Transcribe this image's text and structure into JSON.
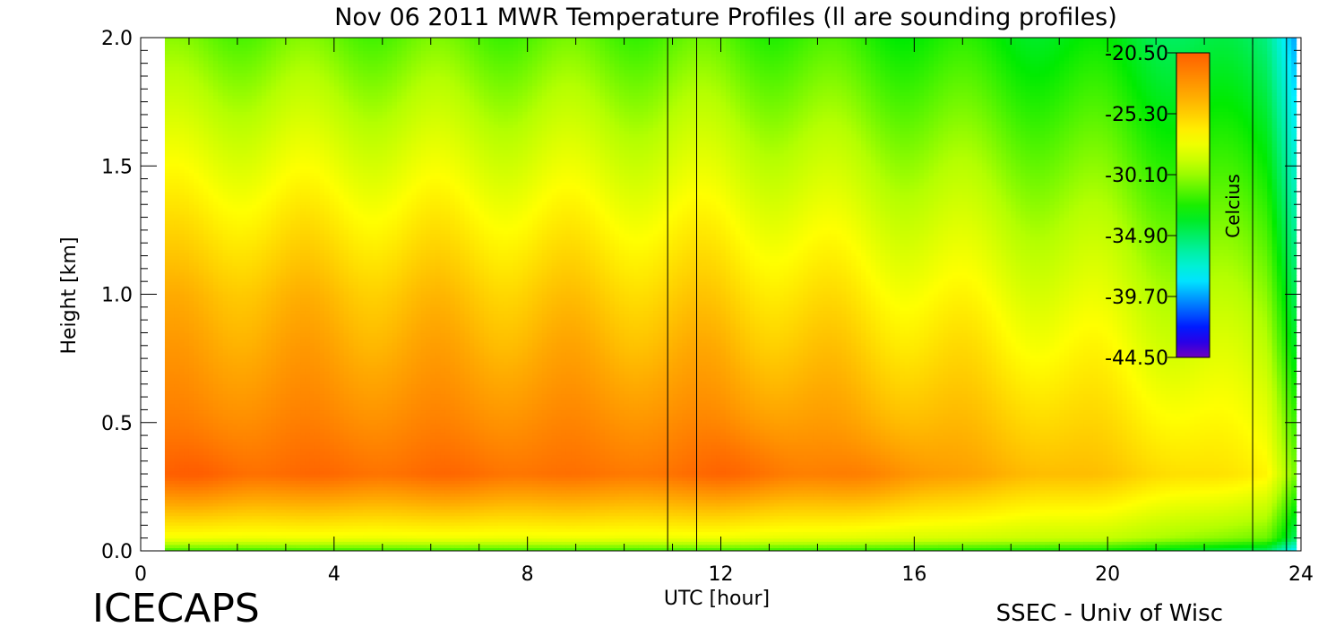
{
  "chart_data": {
    "type": "heatmap",
    "title": "Nov 06 2011 MWR Temperature Profiles (ll are sounding profiles)",
    "xlabel": "UTC [hour]",
    "ylabel": "Height [km]",
    "xlim": [
      0,
      24
    ],
    "ylim": [
      0,
      2.0
    ],
    "x_ticks": [
      "0",
      "4",
      "8",
      "12",
      "16",
      "20",
      "24"
    ],
    "y_ticks": [
      "0.0",
      "0.5",
      "1.0",
      "1.5",
      "2.0"
    ],
    "data_x_range": [
      0.5,
      23.9
    ],
    "sounding_pairs_utc": [
      [
        10.9,
        11.5
      ],
      [
        23.0,
        23.7
      ]
    ],
    "colorbar": {
      "label": "Celcius",
      "ticks": [
        "-20.50",
        "-25.30",
        "-30.10",
        "-34.90",
        "-39.70",
        "-44.50"
      ],
      "range": [
        -44.5,
        -20.5
      ],
      "colormap": "rainbow"
    },
    "warm_cores": [
      {
        "utc": 1.2,
        "height_km": 0.28,
        "temp_c": -21.0
      },
      {
        "utc": 4.0,
        "height_km": 0.3,
        "temp_c": -21.0
      },
      {
        "utc": 6.6,
        "height_km": 0.28,
        "temp_c": -21.5
      },
      {
        "utc": 12.5,
        "height_km": 0.32,
        "temp_c": -21.0
      },
      {
        "utc": 15.2,
        "height_km": 0.28,
        "temp_c": -22.5
      }
    ],
    "approx_profiles": [
      {
        "utc": 2,
        "temps_c": [
          {
            "h": 0.0,
            "t": -29.0
          },
          {
            "h": 0.3,
            "t": -21.3
          },
          {
            "h": 1.0,
            "t": -24.5
          },
          {
            "h": 2.0,
            "t": -31.0
          }
        ]
      },
      {
        "utc": 12,
        "temps_c": [
          {
            "h": 0.0,
            "t": -29.0
          },
          {
            "h": 0.3,
            "t": -21.5
          },
          {
            "h": 1.0,
            "t": -25.5
          },
          {
            "h": 2.0,
            "t": -31.5
          }
        ]
      },
      {
        "utc": 20,
        "temps_c": [
          {
            "h": 0.0,
            "t": -30.0
          },
          {
            "h": 0.3,
            "t": -25.0
          },
          {
            "h": 1.0,
            "t": -28.5
          },
          {
            "h": 2.0,
            "t": -33.5
          }
        ]
      }
    ],
    "grid": false,
    "legend": "none"
  },
  "footer": {
    "left": "ICECAPS",
    "right": "SSEC - Univ of Wisc"
  },
  "colors": {
    "background": "#ffffff",
    "axes": "#000000",
    "sounding_lines": "#000000"
  }
}
